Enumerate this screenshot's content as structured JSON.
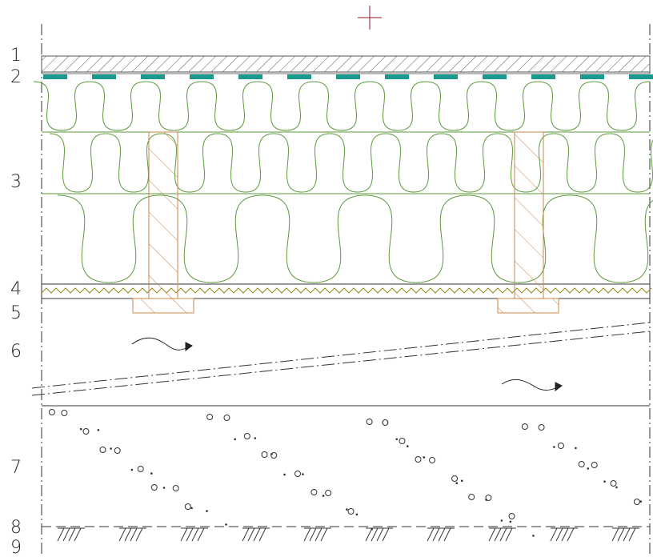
{
  "labels": [
    "1",
    "2",
    "3",
    "4",
    "5",
    "6",
    "7",
    "8",
    "9"
  ]
}
